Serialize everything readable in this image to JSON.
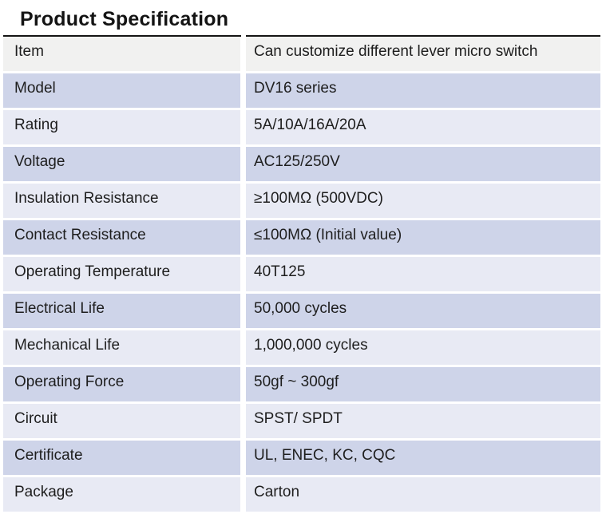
{
  "title": "Product Specification",
  "colors": {
    "page_bg": "#ffffff",
    "title_text": "#141414",
    "border": "#141414",
    "cell_text": "#1e1e1e",
    "row_gray": "#f1f1f0",
    "row_light": "#e8eaf4",
    "row_dark": "#ced4e9"
  },
  "table": {
    "rows": [
      {
        "label": "Item",
        "value": "Can customize different lever micro switch",
        "shade": "gray"
      },
      {
        "label": "Model",
        "value": "DV16 series",
        "shade": "dark"
      },
      {
        "label": "Rating",
        "value": "5A/10A/16A/20A",
        "shade": "light"
      },
      {
        "label": "Voltage",
        "value": "AC125/250V",
        "shade": "dark"
      },
      {
        "label": "Insulation Resistance",
        "value": "≥100MΩ (500VDC)",
        "shade": "light"
      },
      {
        "label": "Contact Resistance",
        "value": "≤100MΩ (Initial value)",
        "shade": "dark"
      },
      {
        "label": "Operating Temperature",
        "value": "40T125",
        "shade": "light"
      },
      {
        "label": "Electrical Life",
        "value": "50,000 cycles",
        "shade": "dark"
      },
      {
        "label": "Mechanical Life",
        "value": "1,000,000 cycles",
        "shade": "light"
      },
      {
        "label": "Operating Force",
        "value": "50gf ~ 300gf",
        "shade": "dark"
      },
      {
        "label": "Circuit",
        "value": "SPST/ SPDT",
        "shade": "light"
      },
      {
        "label": "Certificate",
        "value": "UL, ENEC, KC, CQC",
        "shade": "dark"
      },
      {
        "label": "Package",
        "value": "Carton",
        "shade": "light"
      }
    ]
  }
}
